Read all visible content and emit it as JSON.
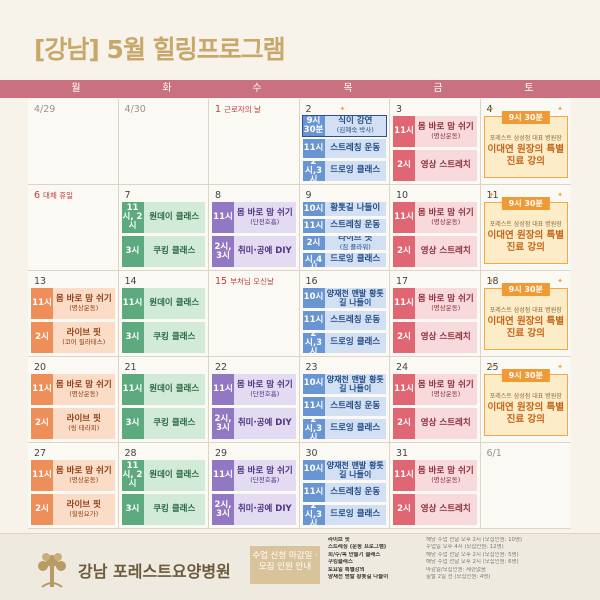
{
  "header": {
    "title": "[강남] 5월 힐링프로그램"
  },
  "weekdays": [
    "월",
    "화",
    "수",
    "목",
    "금",
    "토"
  ],
  "colors": {
    "headbar": "#c9717e",
    "title": "#c8a86a",
    "red": "#e06673",
    "orange": "#ee8f5a",
    "green": "#5daa7e",
    "purple": "#9277c2",
    "blue": "#6996d2",
    "saturday": "#ef9a34"
  },
  "weeks": [
    [
      {
        "date": "4/29",
        "style": "grey",
        "holiday": "",
        "programs": []
      },
      {
        "date": "4/30",
        "style": "grey",
        "holiday": "",
        "programs": []
      },
      {
        "date": "1",
        "style": "red",
        "holiday": "근로자의 날",
        "programs": []
      },
      {
        "date": "2",
        "style": "",
        "holiday": "",
        "programs": [
          {
            "color": "blu",
            "time": "9시 30분",
            "name": "식이 강연",
            "sub": "(김혜숙 박사)",
            "hi": true
          },
          {
            "color": "blu",
            "time": "11시",
            "name": "스트레칭 운동",
            "sub": ""
          },
          {
            "color": "blu",
            "time": "2시,3시",
            "name": "드로잉 클래스",
            "sub": ""
          }
        ]
      },
      {
        "date": "3",
        "style": "",
        "holiday": "",
        "programs": [
          {
            "color": "red",
            "time": "11시",
            "name": "몸 바로 맘 쉬기",
            "sub": "(명상운동)"
          },
          {
            "color": "red",
            "time": "2시",
            "name": "영상 스트레치",
            "sub": ""
          }
        ]
      },
      {
        "date": "4",
        "style": "",
        "holiday": "",
        "saturday": {
          "time": "9시 30분",
          "host": "포레스트 삼성점 대표 병원장",
          "lecture": "이대연 원장의 특별진료 강의"
        }
      }
    ],
    [
      {
        "date": "6",
        "style": "red",
        "holiday": "대체 휴일",
        "programs": []
      },
      {
        "date": "7",
        "style": "",
        "holiday": "",
        "programs": [
          {
            "color": "grn",
            "time": "11시, 2시",
            "name": "원데이 클래스",
            "sub": ""
          },
          {
            "color": "grn",
            "time": "3시",
            "name": "쿠킹 클래스",
            "sub": ""
          }
        ]
      },
      {
        "date": "8",
        "style": "",
        "holiday": "",
        "programs": [
          {
            "color": "pur",
            "time": "11시",
            "name": "몸 바로 맘 쉬기",
            "sub": "(단전호흡)"
          },
          {
            "color": "pur",
            "time": "2시, 3시",
            "name": "취미·공예 DIY",
            "sub": ""
          }
        ]
      },
      {
        "date": "9",
        "style": "",
        "holiday": "",
        "programs": [
          {
            "color": "blu",
            "time": "10시",
            "name": "황톳길 나들이",
            "sub": ""
          },
          {
            "color": "blu",
            "time": "11시",
            "name": "스트레칭 운동",
            "sub": ""
          },
          {
            "color": "blu",
            "time": "2시",
            "name": "라이브 핏",
            "sub": "(짐 플라워)"
          },
          {
            "color": "blu",
            "time": "3시,4시",
            "name": "드로잉 클래스",
            "sub": ""
          }
        ]
      },
      {
        "date": "10",
        "style": "",
        "holiday": "",
        "programs": [
          {
            "color": "red",
            "time": "11시",
            "name": "몸 바로 맘 쉬기",
            "sub": "(명상운동)"
          },
          {
            "color": "red",
            "time": "2시",
            "name": "영상 스트레치",
            "sub": ""
          }
        ]
      },
      {
        "date": "11",
        "style": "",
        "holiday": "",
        "saturday": {
          "time": "9시 30분",
          "host": "포레스트 삼성점 대표 병원장",
          "lecture": "이대연 원장의 특별진료 강의"
        }
      }
    ],
    [
      {
        "date": "13",
        "style": "",
        "holiday": "",
        "programs": [
          {
            "color": "org",
            "time": "11시",
            "name": "몸 바로 맘 쉬기",
            "sub": "(명상운동)"
          },
          {
            "color": "org",
            "time": "2시",
            "name": "라이브 핏",
            "sub": "(코어 필라테스)"
          }
        ]
      },
      {
        "date": "14",
        "style": "",
        "holiday": "",
        "programs": [
          {
            "color": "grn",
            "time": "11시",
            "name": "원데이 클래스",
            "sub": ""
          },
          {
            "color": "grn",
            "time": "3시",
            "name": "쿠킹 클래스",
            "sub": ""
          }
        ]
      },
      {
        "date": "15",
        "style": "red",
        "holiday": "부처님 오신날",
        "programs": []
      },
      {
        "date": "16",
        "style": "",
        "holiday": "",
        "programs": [
          {
            "color": "blu",
            "time": "10시",
            "name": "양재천 맨발 황톳길 나들이",
            "sub": ""
          },
          {
            "color": "blu",
            "time": "11시",
            "name": "스트레칭 운동",
            "sub": ""
          },
          {
            "color": "blu",
            "time": "2시,3시",
            "name": "드로잉 클래스",
            "sub": ""
          }
        ]
      },
      {
        "date": "17",
        "style": "",
        "holiday": "",
        "programs": [
          {
            "color": "red",
            "time": "11시",
            "name": "몸 바로 맘 쉬기",
            "sub": "(명상운동)"
          },
          {
            "color": "red",
            "time": "2시",
            "name": "영상 스트레치",
            "sub": ""
          }
        ]
      },
      {
        "date": "18",
        "style": "",
        "holiday": "",
        "saturday": {
          "time": "9시 30분",
          "host": "포레스트 삼성점 대표 병원장",
          "lecture": "이대연 원장의 특별진료 강의"
        }
      }
    ],
    [
      {
        "date": "20",
        "style": "",
        "holiday": "",
        "programs": [
          {
            "color": "org",
            "time": "11시",
            "name": "몸 바로 맘 쉬기",
            "sub": "(명상운동)"
          },
          {
            "color": "org",
            "time": "2시",
            "name": "라이브 핏",
            "sub": "(링 테라피)"
          }
        ]
      },
      {
        "date": "21",
        "style": "",
        "holiday": "",
        "programs": [
          {
            "color": "grn",
            "time": "11시",
            "name": "원데이 클래스",
            "sub": ""
          },
          {
            "color": "grn",
            "time": "3시",
            "name": "쿠킹 클래스",
            "sub": ""
          }
        ]
      },
      {
        "date": "22",
        "style": "",
        "holiday": "",
        "programs": [
          {
            "color": "pur",
            "time": "11시",
            "name": "몸 바로 맘 쉬기",
            "sub": "(단전호흡)"
          },
          {
            "color": "pur",
            "time": "2시, 3시",
            "name": "취미·공예 DIY",
            "sub": ""
          }
        ]
      },
      {
        "date": "23",
        "style": "",
        "holiday": "",
        "programs": [
          {
            "color": "blu",
            "time": "10시",
            "name": "양재천 맨발 황톳길 나들이",
            "sub": ""
          },
          {
            "color": "blu",
            "time": "11시",
            "name": "스트레칭 운동",
            "sub": ""
          },
          {
            "color": "blu",
            "time": "2시,3시",
            "name": "드로잉 클래스",
            "sub": ""
          }
        ]
      },
      {
        "date": "24",
        "style": "",
        "holiday": "",
        "programs": [
          {
            "color": "red",
            "time": "11시",
            "name": "몸 바로 맘 쉬기",
            "sub": "(명상운동)"
          },
          {
            "color": "red",
            "time": "2시",
            "name": "영상 스트레치",
            "sub": ""
          }
        ]
      },
      {
        "date": "25",
        "style": "",
        "holiday": "",
        "saturday": {
          "time": "9시 30분",
          "host": "포레스트 삼성점 대표 병원장",
          "lecture": "이대연 원장의 특별진료 강의"
        }
      }
    ],
    [
      {
        "date": "27",
        "style": "",
        "holiday": "",
        "programs": [
          {
            "color": "org",
            "time": "11시",
            "name": "몸 바로 맘 쉬기",
            "sub": "(명상운동)"
          },
          {
            "color": "org",
            "time": "2시",
            "name": "라이브 핏",
            "sub": "(힐링요가)"
          }
        ]
      },
      {
        "date": "28",
        "style": "",
        "holiday": "",
        "programs": [
          {
            "color": "grn",
            "time": "11시, 2시",
            "name": "원데이 클래스",
            "sub": ""
          },
          {
            "color": "grn",
            "time": "3시",
            "name": "쿠킹 클래스",
            "sub": ""
          }
        ]
      },
      {
        "date": "29",
        "style": "",
        "holiday": "",
        "programs": [
          {
            "color": "pur",
            "time": "11시",
            "name": "몸 바로 맘 쉬기",
            "sub": "(단전호흡)"
          },
          {
            "color": "pur",
            "time": "2시, 3시",
            "name": "취미·공예 DIY",
            "sub": ""
          }
        ]
      },
      {
        "date": "30",
        "style": "",
        "holiday": "",
        "programs": [
          {
            "color": "blu",
            "time": "10시",
            "name": "양재천 맨발 황톳길 나들이",
            "sub": ""
          },
          {
            "color": "blu",
            "time": "11시",
            "name": "스트레칭 운동",
            "sub": ""
          },
          {
            "color": "blu",
            "time": "2시,3시",
            "name": "드로잉 클래스",
            "sub": ""
          }
        ]
      },
      {
        "date": "31",
        "style": "",
        "holiday": "",
        "programs": [
          {
            "color": "red",
            "time": "11시",
            "name": "몸 바로 맘 쉬기",
            "sub": "(명상운동)"
          },
          {
            "color": "red",
            "time": "2시",
            "name": "영상 스트레치",
            "sub": ""
          }
        ]
      },
      {
        "date": "6/1",
        "style": "grey",
        "holiday": "",
        "programs": []
      }
    ]
  ],
  "footer": {
    "hospital_name": "강남 포레스트요양병원",
    "notice_label": "수업 신청 마감일 · 모집 인원 안내",
    "notes": [
      {
        "label": "라이브 핏",
        "value": "해당 수업 전날 오후 2시 (모집인원: 10명)"
      },
      {
        "label": "스트레칭 (운동 프로그램)",
        "value": "수업일 오후 4시 (모집인원: 12명)"
      },
      {
        "label": "회/수/목 만들기 클래스",
        "value": "해당 수업 전날 오후 2시 (모집인원: 5명)"
      },
      {
        "label": "쿠킹클래스",
        "value": "해당 수업 전날 오후 2시 (모집인원: 6명)"
      },
      {
        "label": "토요일 특별강의",
        "value": "마감일/모집인원: 제한없음"
      },
      {
        "label": "양재천 맨발 황톳길 나들이",
        "value": "출발 2일 전 (모집인원: 4명)"
      }
    ]
  }
}
